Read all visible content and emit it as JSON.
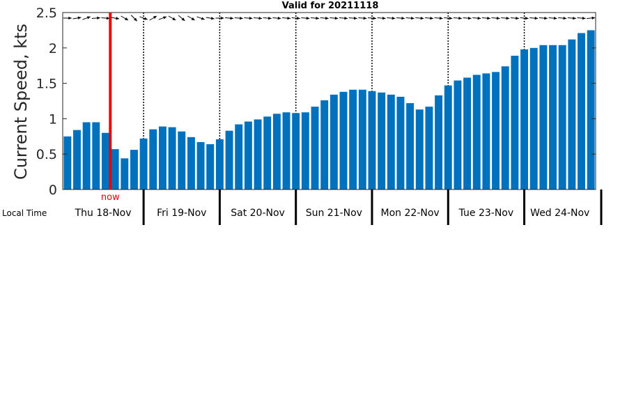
{
  "chart_data": {
    "type": "bar",
    "title": "Valid for 20211118",
    "ylabel": "Current Speed, kts",
    "xlabel": "Local Time",
    "ylim": [
      0,
      2.5
    ],
    "yticks": [
      "0",
      "0.5",
      "1",
      "1.5",
      "2",
      "2.5"
    ],
    "bar_color": "#0072BD",
    "now_color": "#E8000B",
    "now_label": "now",
    "days": [
      "Thu 18-Nov",
      "Fri 19-Nov",
      "Sat 20-Nov",
      "Sun 21-Nov",
      "Mon 22-Nov",
      "Tue 23-Nov",
      "Wed 24-Nov"
    ],
    "values": [
      0.75,
      0.84,
      0.95,
      0.95,
      0.8,
      0.57,
      0.44,
      0.56,
      0.72,
      0.85,
      0.89,
      0.88,
      0.82,
      0.74,
      0.67,
      0.64,
      0.71,
      0.83,
      0.92,
      0.96,
      0.99,
      1.03,
      1.07,
      1.09,
      1.08,
      1.09,
      1.17,
      1.26,
      1.34,
      1.38,
      1.41,
      1.41,
      1.39,
      1.37,
      1.34,
      1.31,
      1.22,
      1.13,
      1.17,
      1.33,
      1.47,
      1.54,
      1.58,
      1.62,
      1.64,
      1.66,
      1.74,
      1.89,
      1.98,
      2.0,
      2.04,
      2.04,
      2.04,
      2.12,
      2.21,
      2.25
    ],
    "now_index": 4.5,
    "day_boundaries_bar_index": [
      8,
      16,
      24,
      32,
      40,
      48
    ],
    "direction_deg": [
      90,
      80,
      70,
      85,
      95,
      100,
      120,
      135,
      110,
      60,
      70,
      120,
      130,
      120,
      110,
      100,
      90,
      95,
      95,
      95,
      95,
      95,
      95,
      95,
      95,
      95,
      95,
      95,
      95,
      95,
      95,
      95,
      95,
      95,
      95,
      95,
      95,
      95,
      95,
      95,
      95,
      95,
      95,
      95,
      95,
      95,
      95,
      95,
      95,
      95,
      95,
      95,
      95,
      95,
      95,
      85
    ]
  }
}
